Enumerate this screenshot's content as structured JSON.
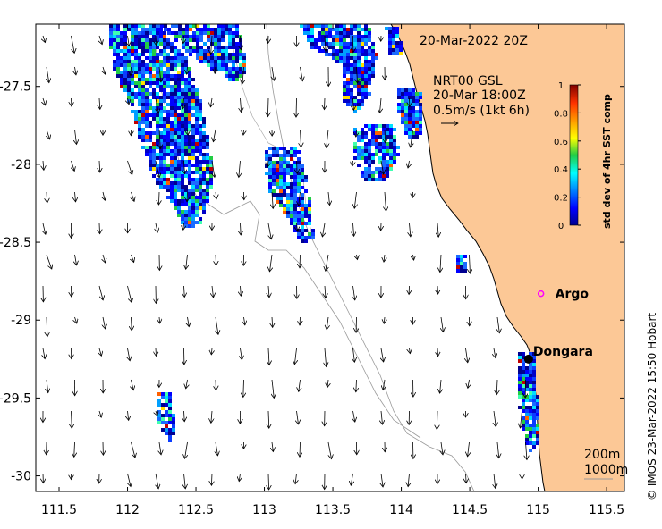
{
  "map": {
    "date_label": "20-Mar-2022 20Z",
    "current_title": "NRT00 GSL",
    "current_time": "20-Mar 18:00Z",
    "current_scale": "0.5m/s (1kt 6h)",
    "credit": "© IMOS 23-Mar-2022 15:50 Hobart",
    "isobath_labels": [
      "200m",
      "1000m"
    ],
    "places": [
      {
        "name": "Argo",
        "lon": 115.02,
        "lat": -28.83,
        "marker": "circle-magenta"
      },
      {
        "name": "Dongara",
        "lon": 114.93,
        "lat": -29.25,
        "marker": "dot-black"
      }
    ],
    "colors": {
      "land": "#fcc896",
      "coast": "#000000",
      "isobath": "#999999",
      "marker_argo": "#ff00ff"
    }
  },
  "chart_data": {
    "type": "map",
    "x_ticks": [
      "111.5",
      "112",
      "112.5",
      "113",
      "113.5",
      "114",
      "114.5",
      "115",
      "115.5"
    ],
    "x_tick_values": [
      111.5,
      112,
      112.5,
      113,
      113.5,
      114,
      114.5,
      115,
      115.5
    ],
    "y_ticks": [
      "-27.5",
      "-28",
      "-28.5",
      "-29",
      "-29.5",
      "-30"
    ],
    "y_tick_values": [
      -27.5,
      -28,
      -28.5,
      -29,
      -29.5,
      -30
    ],
    "xlim": [
      111.33,
      115.63
    ],
    "ylim": [
      -30.1,
      -27.1
    ],
    "colorbar": {
      "label": "std dev of 4hr SST comp",
      "ticks": [
        "0",
        "0.2",
        "0.4",
        "0.6",
        "0.8",
        "1"
      ],
      "range": [
        0,
        1
      ]
    }
  }
}
